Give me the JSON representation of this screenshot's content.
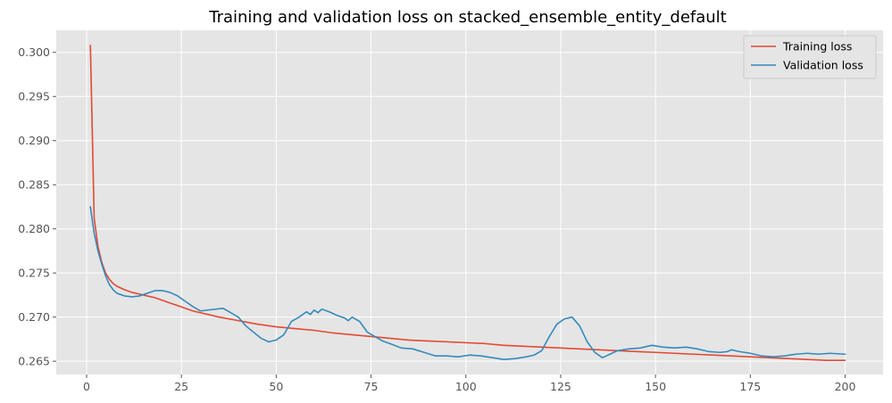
{
  "chart_data": {
    "type": "line",
    "title": "Training and validation loss on stacked_ensemble_entity_default",
    "xlabel": "",
    "ylabel": "",
    "xlim": [
      -8,
      210
    ],
    "ylim": [
      0.2635,
      0.3025
    ],
    "x_ticks": [
      0,
      25,
      50,
      75,
      100,
      125,
      150,
      175,
      200
    ],
    "y_ticks": [
      0.265,
      0.27,
      0.275,
      0.28,
      0.285,
      0.29,
      0.295,
      0.3
    ],
    "y_tick_labels": [
      "0.265",
      "0.270",
      "0.275",
      "0.280",
      "0.285",
      "0.290",
      "0.295",
      "0.300"
    ],
    "grid": true,
    "legend_position": "top-right",
    "series": [
      {
        "name": "Training loss",
        "color": "#E24A33",
        "points": [
          [
            1,
            0.3008
          ],
          [
            2,
            0.2812
          ],
          [
            3,
            0.278
          ],
          [
            4,
            0.2762
          ],
          [
            5,
            0.275
          ],
          [
            6,
            0.2743
          ],
          [
            7,
            0.2738
          ],
          [
            8,
            0.2735
          ],
          [
            10,
            0.2731
          ],
          [
            12,
            0.2728
          ],
          [
            14,
            0.2726
          ],
          [
            16,
            0.2724
          ],
          [
            18,
            0.2722
          ],
          [
            20,
            0.2719
          ],
          [
            22,
            0.2716
          ],
          [
            24,
            0.2713
          ],
          [
            26,
            0.271
          ],
          [
            28,
            0.2707
          ],
          [
            30,
            0.2705
          ],
          [
            32,
            0.2703
          ],
          [
            35,
            0.27
          ],
          [
            40,
            0.2696
          ],
          [
            45,
            0.2692
          ],
          [
            50,
            0.2689
          ],
          [
            55,
            0.2687
          ],
          [
            60,
            0.2685
          ],
          [
            65,
            0.2682
          ],
          [
            70,
            0.268
          ],
          [
            75,
            0.2678
          ],
          [
            80,
            0.2676
          ],
          [
            85,
            0.2674
          ],
          [
            90,
            0.2673
          ],
          [
            95,
            0.2672
          ],
          [
            100,
            0.2671
          ],
          [
            105,
            0.267
          ],
          [
            110,
            0.2668
          ],
          [
            115,
            0.2667
          ],
          [
            120,
            0.2666
          ],
          [
            125,
            0.2665
          ],
          [
            130,
            0.2664
          ],
          [
            135,
            0.2663
          ],
          [
            140,
            0.2662
          ],
          [
            145,
            0.2661
          ],
          [
            150,
            0.266
          ],
          [
            155,
            0.2659
          ],
          [
            160,
            0.2658
          ],
          [
            165,
            0.2657
          ],
          [
            170,
            0.2656
          ],
          [
            175,
            0.2655
          ],
          [
            180,
            0.2654
          ],
          [
            185,
            0.2653
          ],
          [
            190,
            0.2652
          ],
          [
            195,
            0.2651
          ],
          [
            200,
            0.2651
          ]
        ]
      },
      {
        "name": "Validation loss",
        "color": "#348ABD",
        "points": [
          [
            1,
            0.2825
          ],
          [
            2,
            0.2795
          ],
          [
            3,
            0.2775
          ],
          [
            4,
            0.276
          ],
          [
            5,
            0.2747
          ],
          [
            6,
            0.2737
          ],
          [
            7,
            0.2731
          ],
          [
            8,
            0.2727
          ],
          [
            10,
            0.2724
          ],
          [
            12,
            0.2723
          ],
          [
            14,
            0.2724
          ],
          [
            16,
            0.2727
          ],
          [
            18,
            0.273
          ],
          [
            20,
            0.273
          ],
          [
            22,
            0.2728
          ],
          [
            24,
            0.2724
          ],
          [
            26,
            0.2718
          ],
          [
            28,
            0.2712
          ],
          [
            30,
            0.2707
          ],
          [
            32,
            0.2708
          ],
          [
            34,
            0.2709
          ],
          [
            36,
            0.271
          ],
          [
            38,
            0.2705
          ],
          [
            40,
            0.27
          ],
          [
            42,
            0.269
          ],
          [
            44,
            0.2683
          ],
          [
            46,
            0.2676
          ],
          [
            48,
            0.2672
          ],
          [
            50,
            0.2674
          ],
          [
            52,
            0.268
          ],
          [
            54,
            0.2695
          ],
          [
            56,
            0.27
          ],
          [
            58,
            0.2706
          ],
          [
            59,
            0.2703
          ],
          [
            60,
            0.2708
          ],
          [
            61,
            0.2705
          ],
          [
            62,
            0.2709
          ],
          [
            64,
            0.2706
          ],
          [
            66,
            0.2702
          ],
          [
            68,
            0.2699
          ],
          [
            69,
            0.2696
          ],
          [
            70,
            0.27
          ],
          [
            72,
            0.2695
          ],
          [
            74,
            0.2683
          ],
          [
            76,
            0.2678
          ],
          [
            78,
            0.2673
          ],
          [
            80,
            0.267
          ],
          [
            83,
            0.2665
          ],
          [
            86,
            0.2664
          ],
          [
            89,
            0.266
          ],
          [
            92,
            0.2656
          ],
          [
            95,
            0.2656
          ],
          [
            98,
            0.2655
          ],
          [
            101,
            0.2657
          ],
          [
            104,
            0.2656
          ],
          [
            107,
            0.2654
          ],
          [
            110,
            0.2652
          ],
          [
            113,
            0.2653
          ],
          [
            116,
            0.2655
          ],
          [
            118,
            0.2657
          ],
          [
            120,
            0.2662
          ],
          [
            122,
            0.2678
          ],
          [
            124,
            0.2692
          ],
          [
            126,
            0.2698
          ],
          [
            128,
            0.27
          ],
          [
            130,
            0.269
          ],
          [
            132,
            0.2672
          ],
          [
            134,
            0.266
          ],
          [
            136,
            0.2654
          ],
          [
            138,
            0.2658
          ],
          [
            140,
            0.2662
          ],
          [
            143,
            0.2664
          ],
          [
            146,
            0.2665
          ],
          [
            149,
            0.2668
          ],
          [
            152,
            0.2666
          ],
          [
            155,
            0.2665
          ],
          [
            158,
            0.2666
          ],
          [
            161,
            0.2664
          ],
          [
            164,
            0.2661
          ],
          [
            167,
            0.266
          ],
          [
            169,
            0.2661
          ],
          [
            170,
            0.2663
          ],
          [
            172,
            0.2661
          ],
          [
            175,
            0.2659
          ],
          [
            178,
            0.2656
          ],
          [
            181,
            0.2655
          ],
          [
            184,
            0.2656
          ],
          [
            187,
            0.2658
          ],
          [
            190,
            0.2659
          ],
          [
            193,
            0.2658
          ],
          [
            196,
            0.2659
          ],
          [
            200,
            0.2658
          ]
        ]
      }
    ]
  }
}
